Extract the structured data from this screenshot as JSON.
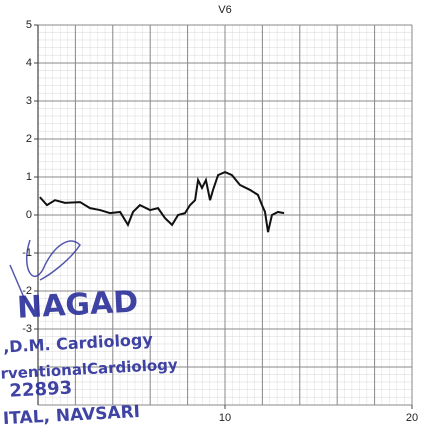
{
  "chart_data": {
    "type": "line",
    "title": "V6",
    "x": [
      0.1,
      0.48,
      0.91,
      1.44,
      2.25,
      2.78,
      3.32,
      3.85,
      4.39,
      4.81,
      5.08,
      5.45,
      5.99,
      6.42,
      6.79,
      7.17,
      7.49,
      7.86,
      8.13,
      8.4,
      8.56,
      8.77,
      8.98,
      9.2,
      9.36,
      9.63,
      10,
      10.37,
      10.8,
      11.34,
      11.76,
      11.98,
      12.14,
      12.3,
      12.51,
      12.83,
      13.16
    ],
    "series": [
      {
        "name": "V6",
        "color": "#111111",
        "values": [
          0.47,
          0.26,
          0.39,
          0.32,
          0.34,
          0.18,
          0.13,
          0.05,
          0.08,
          -0.26,
          0.08,
          0.26,
          0.13,
          0.18,
          -0.08,
          -0.26,
          0,
          0.05,
          0.26,
          0.39,
          0.92,
          0.71,
          0.92,
          0.39,
          0.66,
          1.05,
          1.13,
          1.05,
          0.79,
          0.66,
          0.53,
          0.26,
          0.08,
          -0.45,
          0,
          0.08,
          0.05
        ]
      }
    ],
    "xlim": [
      0,
      20
    ],
    "xticks": [
      10,
      20
    ],
    "ylim": [
      -5,
      5
    ],
    "yticks": [
      5,
      4,
      3,
      2,
      1,
      0,
      -1,
      -2,
      -3
    ],
    "grid": true,
    "annotations": [
      "NAGAD",
      ",D.M. Cardiology",
      "rventionalCardiology",
      "22893",
      "ITAL, NAVSARI"
    ]
  }
}
